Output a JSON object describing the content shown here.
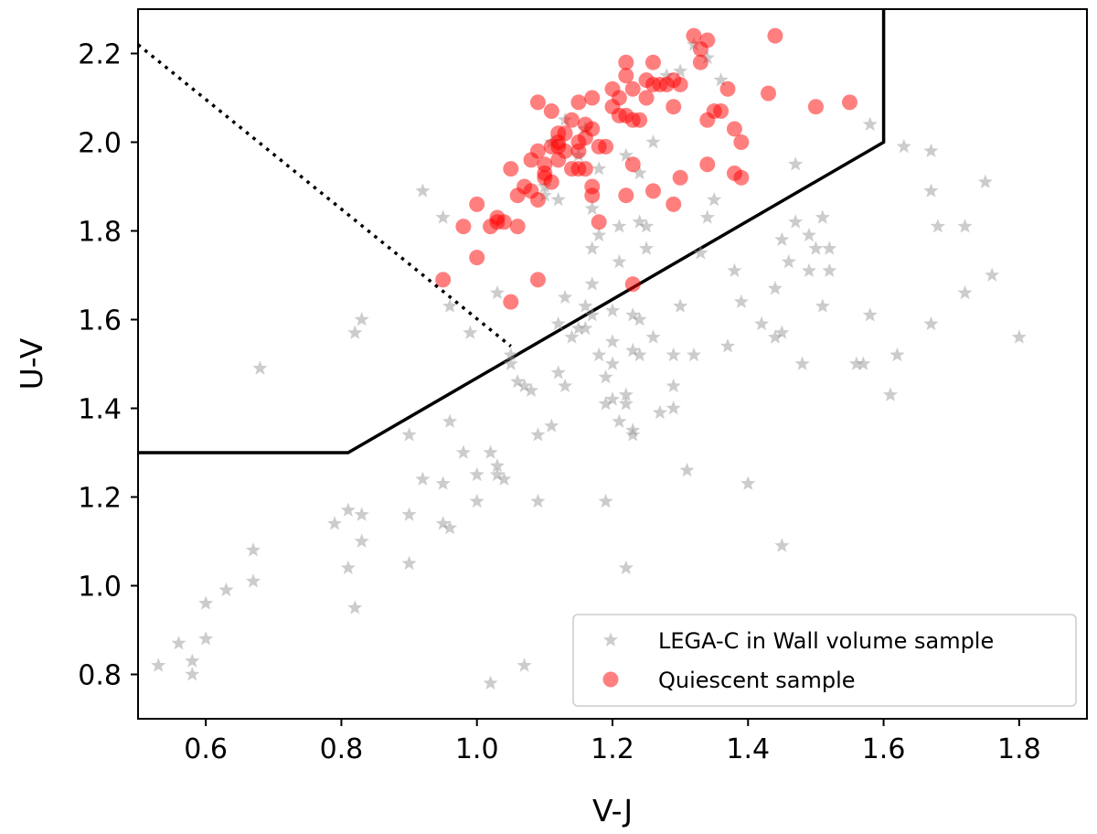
{
  "chart_data": {
    "type": "scatter",
    "xlabel": "V-J",
    "ylabel": "U-V",
    "xlim": [
      0.5,
      1.9
    ],
    "ylim": [
      0.7,
      2.3
    ],
    "x_ticks": [
      "0.6",
      "0.8",
      "1.0",
      "1.2",
      "1.4",
      "1.6",
      "1.8"
    ],
    "y_ticks": [
      "0.8",
      "1.0",
      "1.2",
      "1.4",
      "1.6",
      "1.8",
      "2.0",
      "2.2"
    ],
    "legend": {
      "position": "lower right"
    },
    "grid": false,
    "selection_boundary": {
      "solid": [
        [
          0.5,
          1.3
        ],
        [
          0.81,
          1.3
        ],
        [
          1.6,
          2.0
        ],
        [
          1.6,
          2.3
        ]
      ],
      "dotted": [
        [
          0.5,
          2.22
        ],
        [
          1.05,
          1.54
        ]
      ]
    },
    "series": [
      {
        "name": "LEGA-C in Wall volume sample",
        "marker": "star",
        "color": "#999999",
        "points": [
          [
            0.53,
            0.82
          ],
          [
            0.56,
            0.87
          ],
          [
            0.58,
            0.83
          ],
          [
            0.58,
            0.8
          ],
          [
            0.6,
            0.88
          ],
          [
            0.6,
            0.96
          ],
          [
            0.63,
            0.99
          ],
          [
            0.67,
            1.01
          ],
          [
            0.67,
            1.08
          ],
          [
            0.68,
            1.49
          ],
          [
            0.79,
            1.14
          ],
          [
            0.81,
            1.17
          ],
          [
            0.81,
            1.04
          ],
          [
            0.82,
            0.95
          ],
          [
            0.82,
            1.57
          ],
          [
            0.83,
            1.6
          ],
          [
            0.83,
            1.16
          ],
          [
            0.83,
            1.1
          ],
          [
            0.9,
            1.34
          ],
          [
            0.9,
            1.16
          ],
          [
            0.9,
            1.05
          ],
          [
            0.92,
            1.89
          ],
          [
            0.92,
            1.24
          ],
          [
            0.95,
            1.83
          ],
          [
            0.95,
            1.23
          ],
          [
            0.95,
            1.14
          ],
          [
            0.96,
            1.63
          ],
          [
            0.96,
            1.37
          ],
          [
            0.96,
            1.13
          ],
          [
            0.98,
            1.3
          ],
          [
            0.99,
            1.57
          ],
          [
            1.0,
            1.25
          ],
          [
            1.0,
            1.19
          ],
          [
            1.02,
            1.3
          ],
          [
            1.02,
            0.78
          ],
          [
            1.03,
            1.27
          ],
          [
            1.03,
            1.25
          ],
          [
            1.03,
            1.66
          ],
          [
            1.04,
            1.24
          ],
          [
            1.05,
            1.52
          ],
          [
            1.05,
            1.5
          ],
          [
            1.06,
            1.46
          ],
          [
            1.07,
            1.45
          ],
          [
            1.07,
            0.82
          ],
          [
            1.08,
            1.44
          ],
          [
            1.09,
            1.34
          ],
          [
            1.09,
            1.19
          ],
          [
            1.1,
            1.88
          ],
          [
            1.1,
            1.9
          ],
          [
            1.11,
            1.36
          ],
          [
            1.12,
            1.87
          ],
          [
            1.12,
            1.59
          ],
          [
            1.12,
            1.48
          ],
          [
            1.13,
            1.65
          ],
          [
            1.13,
            1.45
          ],
          [
            1.14,
            1.56
          ],
          [
            1.15,
            1.58
          ],
          [
            1.16,
            1.63
          ],
          [
            1.16,
            1.58
          ],
          [
            1.17,
            1.76
          ],
          [
            1.17,
            1.68
          ],
          [
            1.17,
            1.85
          ],
          [
            1.17,
            1.61
          ],
          [
            1.18,
            1.79
          ],
          [
            1.18,
            1.52
          ],
          [
            1.19,
            1.47
          ],
          [
            1.19,
            1.41
          ],
          [
            1.19,
            1.19
          ],
          [
            1.2,
            1.62
          ],
          [
            1.2,
            1.55
          ],
          [
            1.2,
            1.5
          ],
          [
            1.2,
            1.42
          ],
          [
            1.21,
            1.81
          ],
          [
            1.21,
            1.73
          ],
          [
            1.21,
            1.37
          ],
          [
            1.22,
            1.04
          ],
          [
            1.22,
            1.43
          ],
          [
            1.22,
            1.41
          ],
          [
            1.23,
            1.53
          ],
          [
            1.23,
            1.35
          ],
          [
            1.23,
            1.34
          ],
          [
            1.23,
            1.61
          ],
          [
            1.24,
            1.93
          ],
          [
            1.24,
            1.82
          ],
          [
            1.24,
            1.6
          ],
          [
            1.24,
            1.52
          ],
          [
            1.25,
            1.76
          ],
          [
            1.25,
            1.81
          ],
          [
            1.26,
            1.56
          ],
          [
            1.27,
            1.39
          ],
          [
            1.29,
            1.52
          ],
          [
            1.29,
            1.45
          ],
          [
            1.29,
            1.4
          ],
          [
            1.3,
            1.63
          ],
          [
            1.31,
            1.26
          ],
          [
            1.32,
            1.52
          ],
          [
            1.33,
            1.75
          ],
          [
            1.34,
            1.83
          ],
          [
            1.35,
            1.87
          ],
          [
            1.36,
            2.14
          ],
          [
            1.37,
            1.54
          ],
          [
            1.38,
            1.71
          ],
          [
            1.39,
            1.64
          ],
          [
            1.4,
            1.23
          ],
          [
            1.42,
            1.59
          ],
          [
            1.44,
            1.67
          ],
          [
            1.44,
            1.56
          ],
          [
            1.45,
            1.78
          ],
          [
            1.45,
            1.57
          ],
          [
            1.45,
            1.09
          ],
          [
            1.46,
            1.73
          ],
          [
            1.47,
            1.95
          ],
          [
            1.47,
            1.82
          ],
          [
            1.48,
            1.5
          ],
          [
            1.49,
            1.79
          ],
          [
            1.49,
            1.71
          ],
          [
            1.5,
            1.76
          ],
          [
            1.51,
            1.83
          ],
          [
            1.51,
            1.63
          ],
          [
            1.52,
            1.76
          ],
          [
            1.52,
            1.71
          ],
          [
            1.56,
            1.5
          ],
          [
            1.57,
            1.5
          ],
          [
            1.58,
            1.61
          ],
          [
            1.58,
            2.04
          ],
          [
            1.61,
            1.43
          ],
          [
            1.62,
            1.52
          ],
          [
            1.63,
            1.99
          ],
          [
            1.67,
            1.98
          ],
          [
            1.67,
            1.89
          ],
          [
            1.67,
            1.59
          ],
          [
            1.68,
            1.81
          ],
          [
            1.72,
            1.81
          ],
          [
            1.72,
            1.66
          ],
          [
            1.75,
            1.91
          ],
          [
            1.76,
            1.7
          ],
          [
            1.8,
            1.56
          ],
          [
            1.3,
            2.16
          ],
          [
            1.26,
            2.0
          ],
          [
            1.22,
            1.97
          ],
          [
            1.15,
            1.97
          ],
          [
            1.13,
            2.05
          ],
          [
            1.11,
            2.0
          ],
          [
            1.16,
            2.03
          ],
          [
            1.18,
            1.94
          ],
          [
            1.28,
            2.15
          ],
          [
            1.32,
            2.22
          ],
          [
            1.34,
            2.19
          ]
        ]
      },
      {
        "name": "Quiescent sample",
        "marker": "circle",
        "color": "#ff0000",
        "points": [
          [
            0.95,
            1.69
          ],
          [
            0.98,
            1.81
          ],
          [
            1.0,
            1.86
          ],
          [
            1.0,
            1.74
          ],
          [
            1.02,
            1.81
          ],
          [
            1.03,
            1.82
          ],
          [
            1.03,
            1.83
          ],
          [
            1.04,
            1.82
          ],
          [
            1.05,
            1.94
          ],
          [
            1.05,
            1.64
          ],
          [
            1.06,
            1.88
          ],
          [
            1.06,
            1.81
          ],
          [
            1.07,
            1.9
          ],
          [
            1.08,
            1.89
          ],
          [
            1.08,
            1.96
          ],
          [
            1.09,
            1.98
          ],
          [
            1.09,
            2.09
          ],
          [
            1.09,
            1.87
          ],
          [
            1.09,
            1.69
          ],
          [
            1.1,
            1.95
          ],
          [
            1.1,
            1.93
          ],
          [
            1.1,
            1.92
          ],
          [
            1.11,
            1.99
          ],
          [
            1.11,
            2.07
          ],
          [
            1.11,
            1.91
          ],
          [
            1.12,
            2.02
          ],
          [
            1.12,
            2.0
          ],
          [
            1.12,
            1.99
          ],
          [
            1.12,
            1.96
          ],
          [
            1.13,
            2.02
          ],
          [
            1.13,
            1.98
          ],
          [
            1.14,
            2.05
          ],
          [
            1.14,
            1.94
          ],
          [
            1.15,
            2.09
          ],
          [
            1.15,
            2.0
          ],
          [
            1.15,
            1.98
          ],
          [
            1.15,
            1.94
          ],
          [
            1.16,
            2.04
          ],
          [
            1.16,
            2.01
          ],
          [
            1.16,
            1.94
          ],
          [
            1.17,
            2.1
          ],
          [
            1.17,
            2.03
          ],
          [
            1.17,
            1.9
          ],
          [
            1.17,
            1.88
          ],
          [
            1.18,
            1.99
          ],
          [
            1.18,
            1.82
          ],
          [
            1.19,
            1.99
          ],
          [
            1.2,
            2.12
          ],
          [
            1.2,
            2.08
          ],
          [
            1.21,
            2.1
          ],
          [
            1.21,
            2.06
          ],
          [
            1.22,
            2.18
          ],
          [
            1.22,
            2.15
          ],
          [
            1.22,
            2.06
          ],
          [
            1.22,
            1.88
          ],
          [
            1.23,
            2.12
          ],
          [
            1.23,
            2.05
          ],
          [
            1.23,
            1.95
          ],
          [
            1.23,
            1.68
          ],
          [
            1.24,
            2.05
          ],
          [
            1.25,
            2.14
          ],
          [
            1.25,
            2.1
          ],
          [
            1.26,
            2.18
          ],
          [
            1.26,
            2.13
          ],
          [
            1.26,
            1.89
          ],
          [
            1.27,
            2.13
          ],
          [
            1.28,
            2.13
          ],
          [
            1.29,
            2.14
          ],
          [
            1.29,
            2.08
          ],
          [
            1.29,
            1.86
          ],
          [
            1.3,
            2.13
          ],
          [
            1.3,
            1.92
          ],
          [
            1.32,
            2.24
          ],
          [
            1.33,
            2.21
          ],
          [
            1.33,
            2.18
          ],
          [
            1.34,
            2.23
          ],
          [
            1.34,
            2.05
          ],
          [
            1.34,
            1.95
          ],
          [
            1.35,
            2.07
          ],
          [
            1.36,
            2.07
          ],
          [
            1.37,
            2.12
          ],
          [
            1.38,
            2.03
          ],
          [
            1.38,
            1.93
          ],
          [
            1.39,
            2.0
          ],
          [
            1.39,
            1.92
          ],
          [
            1.43,
            2.11
          ],
          [
            1.44,
            2.24
          ],
          [
            1.5,
            2.08
          ],
          [
            1.55,
            2.09
          ]
        ]
      }
    ]
  }
}
